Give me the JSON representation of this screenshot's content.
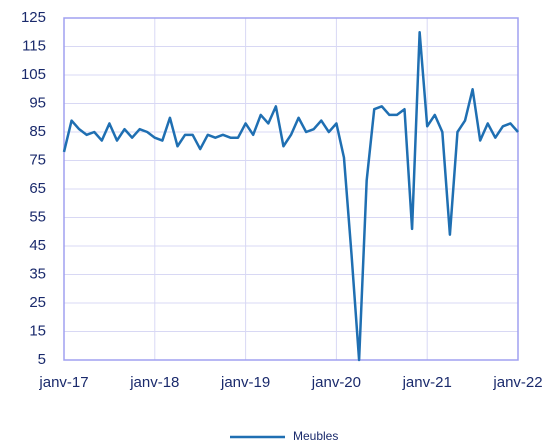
{
  "chart_data": {
    "type": "line",
    "categories": [
      "janv-17",
      null,
      null,
      null,
      null,
      null,
      null,
      null,
      null,
      null,
      null,
      null,
      "janv-18",
      null,
      null,
      null,
      null,
      null,
      null,
      null,
      null,
      null,
      null,
      null,
      "janv-19",
      null,
      null,
      null,
      null,
      null,
      null,
      null,
      null,
      null,
      null,
      null,
      "janv-20",
      null,
      null,
      null,
      null,
      null,
      null,
      null,
      null,
      null,
      null,
      null,
      "janv-21",
      null,
      null,
      null,
      null,
      null,
      null,
      null,
      null,
      null,
      null,
      null,
      "janv-22"
    ],
    "series": [
      {
        "name": "Meubles",
        "color": "#1f6fb2",
        "values": [
          78,
          89,
          86,
          84,
          85,
          82,
          88,
          82,
          86,
          83,
          86,
          85,
          83,
          82,
          90,
          80,
          84,
          84,
          79,
          84,
          83,
          84,
          83,
          83,
          88,
          84,
          91,
          88,
          94,
          80,
          84,
          90,
          85,
          86,
          89,
          85,
          88,
          76,
          42,
          5,
          68,
          93,
          94,
          91,
          91,
          93,
          51,
          120,
          87,
          91,
          85,
          49,
          85,
          89,
          100,
          82,
          88,
          83,
          87,
          88,
          85
        ]
      }
    ],
    "ylim": [
      5,
      125
    ],
    "yticks": [
      5,
      15,
      25,
      35,
      45,
      55,
      65,
      75,
      85,
      95,
      105,
      115,
      125
    ],
    "grid": true,
    "legend": "bottom"
  }
}
